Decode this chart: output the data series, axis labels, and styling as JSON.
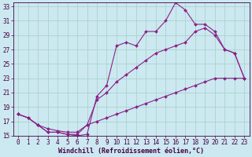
{
  "xlabel": "Windchill (Refroidissement éolien,°C)",
  "bg_color": "#cce8f0",
  "grid_color": "#aad4cc",
  "line_color": "#882288",
  "xlim": [
    -0.5,
    23.5
  ],
  "ylim": [
    15,
    33.5
  ],
  "xticks": [
    0,
    1,
    2,
    3,
    4,
    5,
    6,
    7,
    8,
    9,
    10,
    11,
    12,
    13,
    14,
    15,
    16,
    17,
    18,
    19,
    20,
    21,
    22,
    23
  ],
  "yticks": [
    15,
    17,
    19,
    21,
    23,
    25,
    27,
    29,
    31,
    33
  ],
  "line1_x": [
    0,
    1,
    2,
    3,
    4,
    5,
    6,
    7,
    8,
    9,
    10,
    11,
    12,
    13,
    14,
    15,
    16,
    17,
    18,
    19,
    20,
    21,
    22,
    23
  ],
  "line1_y": [
    18.0,
    17.5,
    16.5,
    15.5,
    15.5,
    15.2,
    15.2,
    16.5,
    20.0,
    21.0,
    22.5,
    23.5,
    24.5,
    25.5,
    26.5,
    27.0,
    27.5,
    28.0,
    29.5,
    30.0,
    29.0,
    27.0,
    26.5,
    23.0
  ],
  "line2_x": [
    0,
    1,
    2,
    3,
    4,
    5,
    6,
    7,
    8,
    9,
    10,
    11,
    12,
    13,
    14,
    15,
    16,
    17,
    18,
    19,
    20,
    21,
    22,
    23
  ],
  "line2_y": [
    18.0,
    17.5,
    16.5,
    15.5,
    15.5,
    15.2,
    15.0,
    15.2,
    20.5,
    22.0,
    27.5,
    28.0,
    27.5,
    29.5,
    29.5,
    31.0,
    33.5,
    32.5,
    30.5,
    30.5,
    29.5,
    27.0,
    26.5,
    23.0
  ],
  "line3_x": [
    0,
    1,
    2,
    3,
    4,
    5,
    6,
    7,
    8,
    9,
    10,
    11,
    12,
    13,
    14,
    15,
    16,
    17,
    18,
    19,
    20,
    21,
    22,
    23
  ],
  "line3_y": [
    18.0,
    17.5,
    16.5,
    16.0,
    15.7,
    15.5,
    15.5,
    16.5,
    17.0,
    17.5,
    18.0,
    18.5,
    19.0,
    19.5,
    20.0,
    20.5,
    21.0,
    21.5,
    22.0,
    22.5,
    23.0,
    23.0,
    23.0,
    23.0
  ],
  "tick_fontsize": 5.5,
  "xlabel_fontsize": 6.0
}
